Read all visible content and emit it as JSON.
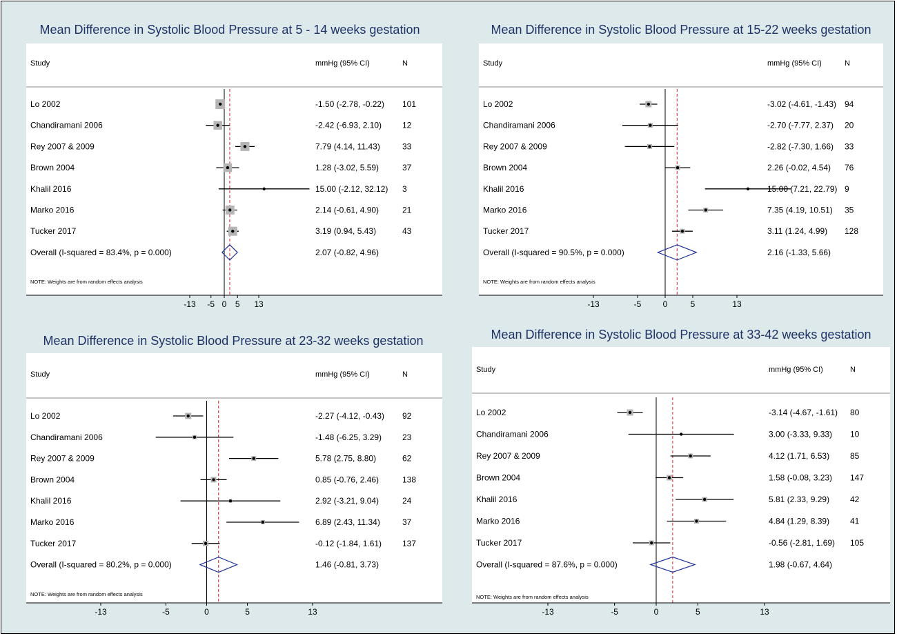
{
  "header_labels": {
    "study": "Study",
    "ci": "mmHg (95% CI)",
    "n": "N"
  },
  "note": "NOTE: Weights are from random effects analysis",
  "chart_data": [
    {
      "type": "forest",
      "title": "Mean Difference in Systolic Blood Pressure at 5 - 14 weeks gestation",
      "studies": [
        {
          "name": "Lo 2002",
          "md": -1.5,
          "lo": -2.78,
          "hi": -0.22,
          "ci_text": "-1.50 (-2.78, -0.22)",
          "n": "101",
          "weight": 1.0
        },
        {
          "name": "Chandiramani 2006",
          "md": -2.42,
          "lo": -6.93,
          "hi": 2.1,
          "ci_text": "-2.42 (-6.93, 2.10)",
          "n": "12",
          "weight": 0.85
        },
        {
          "name": "Rey 2007 & 2009",
          "md": 7.79,
          "lo": 4.14,
          "hi": 11.43,
          "ci_text": "7.79 (4.14, 11.43)",
          "n": "33",
          "weight": 0.9
        },
        {
          "name": "Brown 2004",
          "md": 1.28,
          "lo": -3.02,
          "hi": 5.59,
          "ci_text": "1.28 (-3.02, 5.59)",
          "n": "37",
          "weight": 0.85
        },
        {
          "name": "Khalil 2016",
          "md": 15.0,
          "lo": -2.12,
          "hi": 32.12,
          "ci_text": "15.00 (-2.12, 32.12)",
          "n": "3",
          "weight": 0.0
        },
        {
          "name": "Marko 2016",
          "md": 2.14,
          "lo": -0.61,
          "hi": 4.9,
          "ci_text": "2.14 (-0.61, 4.90)",
          "n": "21",
          "weight": 0.9
        },
        {
          "name": "Tucker 2017",
          "md": 3.19,
          "lo": 0.94,
          "hi": 5.43,
          "ci_text": "3.19 (0.94, 5.43)",
          "n": "43",
          "weight": 0.9
        }
      ],
      "overall": {
        "label": "Overall  (I-squared = 83.4%, p = 0.000)",
        "md": 2.07,
        "lo": -0.82,
        "hi": 4.96,
        "ci_text": "2.07 (-0.82, 4.96)"
      },
      "ticks": [
        -13,
        -5,
        0,
        5,
        13
      ],
      "xlim": [
        -29,
        33
      ]
    },
    {
      "type": "forest",
      "title": "Mean Difference in Systolic Blood Pressure at 15-22 weeks gestation",
      "studies": [
        {
          "name": "Lo 2002",
          "md": -3.02,
          "lo": -4.61,
          "hi": -1.43,
          "ci_text": "-3.02 (-4.61, -1.43)",
          "n": "94",
          "weight": 0.5
        },
        {
          "name": "Chandiramani 2006",
          "md": -2.7,
          "lo": -7.77,
          "hi": 2.37,
          "ci_text": "-2.70 (-7.77, 2.37)",
          "n": "20",
          "weight": 0.3
        },
        {
          "name": "Rey 2007 & 2009",
          "md": -2.82,
          "lo": -7.3,
          "hi": 1.66,
          "ci_text": "-2.82 (-7.30, 1.66)",
          "n": "33",
          "weight": 0.3
        },
        {
          "name": "Brown 2004",
          "md": 2.26,
          "lo": -0.02,
          "hi": 4.54,
          "ci_text": "2.26 (-0.02, 4.54)",
          "n": "76",
          "weight": 0.3
        },
        {
          "name": "Khalil 2016",
          "md": 15.0,
          "lo": 7.21,
          "hi": 22.79,
          "ci_text": "15.00 (7.21, 22.79)",
          "n": "9",
          "weight": 0.0
        },
        {
          "name": "Marko 2016",
          "md": 7.35,
          "lo": 4.19,
          "hi": 10.51,
          "ci_text": "7.35 (4.19, 10.51)",
          "n": "35",
          "weight": 0.3
        },
        {
          "name": "Tucker 2017",
          "md": 3.11,
          "lo": 1.24,
          "hi": 4.99,
          "ci_text": "3.11 (1.24, 4.99)",
          "n": "128",
          "weight": 0.3
        }
      ],
      "overall": {
        "label": "Overall  (I-squared = 90.5%, p = 0.000)",
        "md": 2.16,
        "lo": -1.33,
        "hi": 5.66,
        "ci_text": "2.16 (-1.33, 5.66)"
      },
      "ticks": [
        -13,
        -5,
        0,
        5,
        13
      ],
      "xlim": [
        -24,
        32
      ]
    },
    {
      "type": "forest",
      "title": "Mean Difference in Systolic Blood Pressure at 23-32 weeks gestation",
      "studies": [
        {
          "name": "Lo 2002",
          "md": -2.27,
          "lo": -4.12,
          "hi": -0.43,
          "ci_text": "-2.27 (-4.12, -0.43)",
          "n": "92",
          "weight": 0.5
        },
        {
          "name": "Chandiramani 2006",
          "md": -1.48,
          "lo": -6.25,
          "hi": 3.29,
          "ci_text": "-1.48 (-6.25, 3.29)",
          "n": "23",
          "weight": 0.2
        },
        {
          "name": "Rey 2007 & 2009",
          "md": 5.78,
          "lo": 2.75,
          "hi": 8.8,
          "ci_text": "5.78 (2.75, 8.80)",
          "n": "62",
          "weight": 0.3
        },
        {
          "name": "Brown 2004",
          "md": 0.85,
          "lo": -0.76,
          "hi": 2.46,
          "ci_text": "0.85 (-0.76, 2.46)",
          "n": "138",
          "weight": 0.4
        },
        {
          "name": "Khalil 2016",
          "md": 2.92,
          "lo": -3.21,
          "hi": 9.04,
          "ci_text": "2.92 (-3.21, 9.04)",
          "n": "24",
          "weight": 0.1
        },
        {
          "name": "Marko 2016",
          "md": 6.89,
          "lo": 2.43,
          "hi": 11.34,
          "ci_text": "6.89 (2.43, 11.34)",
          "n": "37",
          "weight": 0.2
        },
        {
          "name": "Tucker 2017",
          "md": -0.12,
          "lo": -1.84,
          "hi": 1.61,
          "ci_text": "-0.12 (-1.84, 1.61)",
          "n": "137",
          "weight": 0.4
        }
      ],
      "overall": {
        "label": "Overall  (I-squared = 80.2%, p = 0.000)",
        "md": 1.46,
        "lo": -0.81,
        "hi": 3.73,
        "ci_text": "1.46 (-0.81, 3.73)"
      },
      "ticks": [
        -13,
        -5,
        0,
        5,
        13
      ],
      "xlim": [
        -23,
        17
      ]
    },
    {
      "type": "forest",
      "title": "Mean Difference in Systolic Blood Pressure at 33-42 weeks gestation",
      "studies": [
        {
          "name": "Lo 2002",
          "md": -3.14,
          "lo": -4.67,
          "hi": -1.61,
          "ci_text": "-3.14 (-4.67, -1.61)",
          "n": "80",
          "weight": 0.5
        },
        {
          "name": "Chandiramani 2006",
          "md": 3.0,
          "lo": -3.33,
          "hi": 9.33,
          "ci_text": "3.00 (-3.33, 9.33)",
          "n": "10",
          "weight": 0.0
        },
        {
          "name": "Rey 2007 & 2009",
          "md": 4.12,
          "lo": 1.71,
          "hi": 6.53,
          "ci_text": "4.12 (1.71, 6.53)",
          "n": "85",
          "weight": 0.3
        },
        {
          "name": "Brown 2004",
          "md": 1.58,
          "lo": -0.08,
          "hi": 3.23,
          "ci_text": "1.58 (-0.08, 3.23)",
          "n": "147",
          "weight": 0.4
        },
        {
          "name": "Khalil 2016",
          "md": 5.81,
          "lo": 2.33,
          "hi": 9.29,
          "ci_text": "5.81 (2.33, 9.29)",
          "n": "42",
          "weight": 0.3
        },
        {
          "name": "Marko 2016",
          "md": 4.84,
          "lo": 1.29,
          "hi": 8.39,
          "ci_text": "4.84 (1.29, 8.39)",
          "n": "41",
          "weight": 0.3
        },
        {
          "name": "Tucker 2017",
          "md": -0.56,
          "lo": -2.81,
          "hi": 1.69,
          "ci_text": "-0.56 (-2.81, 1.69)",
          "n": "105",
          "weight": 0.3
        }
      ],
      "overall": {
        "label": "Overall  (I-squared = 87.6%, p = 0.000)",
        "md": 1.98,
        "lo": -0.67,
        "hi": 4.64,
        "ci_text": "1.98 (-0.67, 4.64)"
      },
      "ticks": [
        -13,
        -5,
        0,
        5,
        13
      ],
      "xlim": [
        -23,
        17
      ]
    }
  ]
}
